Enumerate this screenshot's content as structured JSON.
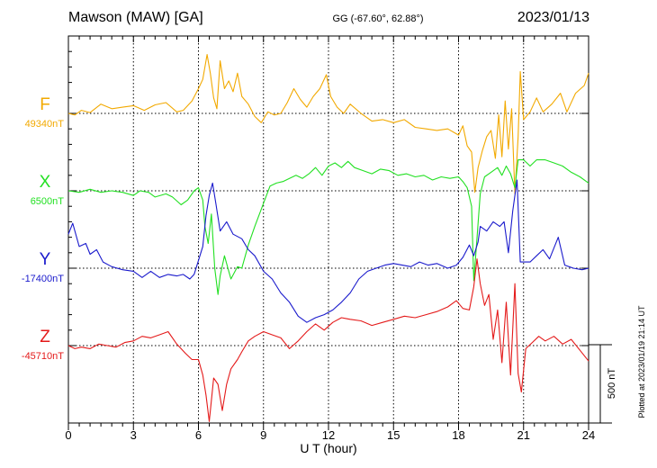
{
  "header": {
    "station": "Mawson (MAW)  [GA]",
    "coords": "GG (-67.60°,  62.88°)",
    "date": "2023/01/13"
  },
  "xaxis": {
    "label": "U T (hour)",
    "ticks": [
      "0",
      "3",
      "6",
      "9",
      "12",
      "15",
      "18",
      "21",
      "24"
    ]
  },
  "scale_bar": {
    "label": "500 nT",
    "value_nT": 500
  },
  "plotted_note": "Plotted at 2023/01/19 21:14 UT",
  "chart_data": {
    "type": "line",
    "x_range": [
      0,
      24
    ],
    "x_ticks": [
      0,
      3,
      6,
      9,
      12,
      15,
      18,
      21,
      24
    ],
    "nT_per_division": 500,
    "series": [
      {
        "name": "F",
        "baseline": "49340nT",
        "color": "#f2a900",
        "points": [
          [
            0,
            49340
          ],
          [
            0.3,
            49330
          ],
          [
            0.6,
            49360
          ],
          [
            1.0,
            49345
          ],
          [
            1.5,
            49400
          ],
          [
            2.0,
            49370
          ],
          [
            2.5,
            49380
          ],
          [
            3.0,
            49390
          ],
          [
            3.5,
            49360
          ],
          [
            4.0,
            49395
          ],
          [
            4.5,
            49410
          ],
          [
            5.0,
            49350
          ],
          [
            5.3,
            49360
          ],
          [
            5.7,
            49420
          ],
          [
            6.0,
            49500
          ],
          [
            6.2,
            49560
          ],
          [
            6.4,
            49720
          ],
          [
            6.55,
            49600
          ],
          [
            6.7,
            49440
          ],
          [
            6.85,
            49370
          ],
          [
            7.0,
            49680
          ],
          [
            7.2,
            49500
          ],
          [
            7.4,
            49550
          ],
          [
            7.6,
            49480
          ],
          [
            7.8,
            49600
          ],
          [
            8.0,
            49450
          ],
          [
            8.3,
            49400
          ],
          [
            8.6,
            49320
          ],
          [
            8.9,
            49280
          ],
          [
            9.2,
            49350
          ],
          [
            9.5,
            49330
          ],
          [
            9.8,
            49340
          ],
          [
            10.1,
            49410
          ],
          [
            10.4,
            49500
          ],
          [
            10.7,
            49430
          ],
          [
            11.0,
            49380
          ],
          [
            11.3,
            49450
          ],
          [
            11.6,
            49500
          ],
          [
            11.9,
            49590
          ],
          [
            12.1,
            49450
          ],
          [
            12.4,
            49380
          ],
          [
            12.7,
            49340
          ],
          [
            13.0,
            49400
          ],
          [
            13.5,
            49340
          ],
          [
            14.0,
            49290
          ],
          [
            14.5,
            49300
          ],
          [
            15.0,
            49280
          ],
          [
            15.5,
            49300
          ],
          [
            16.0,
            49250
          ],
          [
            16.5,
            49240
          ],
          [
            17.0,
            49230
          ],
          [
            17.5,
            49240
          ],
          [
            18.0,
            49200
          ],
          [
            18.2,
            49260
          ],
          [
            18.4,
            49130
          ],
          [
            18.6,
            49090
          ],
          [
            18.75,
            48830
          ],
          [
            18.9,
            48990
          ],
          [
            19.1,
            49100
          ],
          [
            19.3,
            49190
          ],
          [
            19.5,
            49230
          ],
          [
            19.7,
            49050
          ],
          [
            19.85,
            49330
          ],
          [
            20.0,
            49060
          ],
          [
            20.15,
            49420
          ],
          [
            20.3,
            49110
          ],
          [
            20.45,
            49370
          ],
          [
            20.6,
            48820
          ],
          [
            20.75,
            49190
          ],
          [
            20.85,
            49610
          ],
          [
            21.0,
            49300
          ],
          [
            21.3,
            49350
          ],
          [
            21.6,
            49440
          ],
          [
            21.9,
            49350
          ],
          [
            22.3,
            49400
          ],
          [
            22.7,
            49470
          ],
          [
            23.0,
            49350
          ],
          [
            23.4,
            49470
          ],
          [
            23.8,
            49520
          ],
          [
            24.0,
            49600
          ]
        ]
      },
      {
        "name": "X",
        "baseline": "6500nT",
        "color": "#22e022",
        "points": [
          [
            0,
            6500
          ],
          [
            0.5,
            6490
          ],
          [
            1.0,
            6510
          ],
          [
            1.5,
            6490
          ],
          [
            2.0,
            6500
          ],
          [
            2.5,
            6490
          ],
          [
            3.0,
            6470
          ],
          [
            3.3,
            6500
          ],
          [
            3.7,
            6490
          ],
          [
            4.0,
            6460
          ],
          [
            4.5,
            6480
          ],
          [
            4.8,
            6460
          ],
          [
            5.2,
            6410
          ],
          [
            5.5,
            6440
          ],
          [
            5.8,
            6500
          ],
          [
            6.0,
            6520
          ],
          [
            6.2,
            6440
          ],
          [
            6.3,
            6270
          ],
          [
            6.45,
            6160
          ],
          [
            6.6,
            6350
          ],
          [
            6.75,
            6000
          ],
          [
            6.9,
            5830
          ],
          [
            7.0,
            5950
          ],
          [
            7.2,
            6080
          ],
          [
            7.5,
            5930
          ],
          [
            7.8,
            6010
          ],
          [
            8.0,
            6000
          ],
          [
            8.3,
            6150
          ],
          [
            8.6,
            6270
          ],
          [
            9.0,
            6420
          ],
          [
            9.3,
            6530
          ],
          [
            9.6,
            6550
          ],
          [
            9.9,
            6560
          ],
          [
            10.2,
            6580
          ],
          [
            10.5,
            6600
          ],
          [
            10.8,
            6580
          ],
          [
            11.1,
            6610
          ],
          [
            11.4,
            6650
          ],
          [
            11.7,
            6600
          ],
          [
            12.0,
            6660
          ],
          [
            12.3,
            6680
          ],
          [
            12.6,
            6650
          ],
          [
            12.9,
            6690
          ],
          [
            13.2,
            6650
          ],
          [
            13.6,
            6630
          ],
          [
            14.0,
            6610
          ],
          [
            14.4,
            6640
          ],
          [
            14.8,
            6630
          ],
          [
            15.2,
            6600
          ],
          [
            15.6,
            6610
          ],
          [
            16.0,
            6590
          ],
          [
            16.4,
            6600
          ],
          [
            16.8,
            6570
          ],
          [
            17.2,
            6590
          ],
          [
            17.6,
            6580
          ],
          [
            18.0,
            6590
          ],
          [
            18.2,
            6560
          ],
          [
            18.4,
            6520
          ],
          [
            18.6,
            6400
          ],
          [
            18.7,
            5920
          ],
          [
            18.8,
            6100
          ],
          [
            19.0,
            6480
          ],
          [
            19.2,
            6590
          ],
          [
            19.5,
            6620
          ],
          [
            19.8,
            6650
          ],
          [
            20.0,
            6600
          ],
          [
            20.2,
            6660
          ],
          [
            20.4,
            6610
          ],
          [
            20.6,
            6520
          ],
          [
            20.75,
            6700
          ],
          [
            21.0,
            6700
          ],
          [
            21.3,
            6660
          ],
          [
            21.6,
            6700
          ],
          [
            22.0,
            6700
          ],
          [
            22.4,
            6680
          ],
          [
            22.8,
            6660
          ],
          [
            23.2,
            6620
          ],
          [
            23.6,
            6590
          ],
          [
            24.0,
            6550
          ]
        ]
      },
      {
        "name": "Y",
        "baseline": "-17400nT",
        "color": "#1a1acc",
        "points": [
          [
            0,
            -17180
          ],
          [
            0.2,
            -17110
          ],
          [
            0.5,
            -17260
          ],
          [
            0.8,
            -17240
          ],
          [
            1.0,
            -17310
          ],
          [
            1.3,
            -17280
          ],
          [
            1.6,
            -17360
          ],
          [
            2.0,
            -17390
          ],
          [
            2.5,
            -17410
          ],
          [
            3.0,
            -17420
          ],
          [
            3.4,
            -17460
          ],
          [
            3.8,
            -17420
          ],
          [
            4.2,
            -17460
          ],
          [
            4.6,
            -17440
          ],
          [
            5.0,
            -17450
          ],
          [
            5.3,
            -17440
          ],
          [
            5.6,
            -17470
          ],
          [
            5.8,
            -17440
          ],
          [
            6.0,
            -17350
          ],
          [
            6.2,
            -17260
          ],
          [
            6.35,
            -17060
          ],
          [
            6.5,
            -16930
          ],
          [
            6.65,
            -16850
          ],
          [
            6.8,
            -16980
          ],
          [
            7.0,
            -17160
          ],
          [
            7.3,
            -17100
          ],
          [
            7.6,
            -17180
          ],
          [
            8.0,
            -17210
          ],
          [
            8.3,
            -17280
          ],
          [
            8.6,
            -17320
          ],
          [
            9.0,
            -17420
          ],
          [
            9.4,
            -17470
          ],
          [
            9.8,
            -17560
          ],
          [
            10.2,
            -17620
          ],
          [
            10.6,
            -17710
          ],
          [
            11.0,
            -17750
          ],
          [
            11.4,
            -17720
          ],
          [
            11.8,
            -17700
          ],
          [
            12.2,
            -17670
          ],
          [
            12.6,
            -17620
          ],
          [
            13.0,
            -17560
          ],
          [
            13.4,
            -17470
          ],
          [
            13.8,
            -17420
          ],
          [
            14.2,
            -17400
          ],
          [
            14.6,
            -17380
          ],
          [
            15.0,
            -17370
          ],
          [
            15.4,
            -17380
          ],
          [
            15.8,
            -17390
          ],
          [
            16.2,
            -17360
          ],
          [
            16.6,
            -17380
          ],
          [
            17.0,
            -17370
          ],
          [
            17.5,
            -17400
          ],
          [
            17.9,
            -17380
          ],
          [
            18.2,
            -17330
          ],
          [
            18.5,
            -17250
          ],
          [
            18.7,
            -17320
          ],
          [
            18.9,
            -17230
          ],
          [
            19.0,
            -17130
          ],
          [
            19.3,
            -17160
          ],
          [
            19.6,
            -17100
          ],
          [
            19.9,
            -17130
          ],
          [
            20.1,
            -17100
          ],
          [
            20.3,
            -17300
          ],
          [
            20.5,
            -17030
          ],
          [
            20.7,
            -16830
          ],
          [
            20.85,
            -17360
          ],
          [
            21.0,
            -17360
          ],
          [
            21.3,
            -17360
          ],
          [
            21.6,
            -17320
          ],
          [
            21.9,
            -17280
          ],
          [
            22.2,
            -17340
          ],
          [
            22.6,
            -17200
          ],
          [
            22.9,
            -17380
          ],
          [
            23.3,
            -17400
          ],
          [
            23.7,
            -17410
          ],
          [
            24.0,
            -17400
          ]
        ]
      },
      {
        "name": "Z",
        "baseline": "-45710nT",
        "color": "#e41a1a",
        "points": [
          [
            0,
            -45710
          ],
          [
            0.3,
            -45730
          ],
          [
            0.6,
            -45720
          ],
          [
            1.0,
            -45730
          ],
          [
            1.4,
            -45700
          ],
          [
            1.8,
            -45710
          ],
          [
            2.2,
            -45720
          ],
          [
            2.6,
            -45690
          ],
          [
            3.0,
            -45680
          ],
          [
            3.4,
            -45650
          ],
          [
            3.8,
            -45660
          ],
          [
            4.2,
            -45640
          ],
          [
            4.6,
            -45620
          ],
          [
            5.0,
            -45700
          ],
          [
            5.4,
            -45760
          ],
          [
            5.7,
            -45800
          ],
          [
            6.0,
            -45800
          ],
          [
            6.2,
            -45900
          ],
          [
            6.35,
            -46030
          ],
          [
            6.5,
            -46200
          ],
          [
            6.7,
            -45920
          ],
          [
            6.9,
            -45960
          ],
          [
            7.1,
            -46130
          ],
          [
            7.3,
            -45960
          ],
          [
            7.5,
            -45860
          ],
          [
            7.8,
            -45800
          ],
          [
            8.0,
            -45750
          ],
          [
            8.3,
            -45680
          ],
          [
            8.6,
            -45650
          ],
          [
            9.0,
            -45620
          ],
          [
            9.4,
            -45640
          ],
          [
            9.8,
            -45660
          ],
          [
            10.2,
            -45730
          ],
          [
            10.6,
            -45680
          ],
          [
            11.0,
            -45620
          ],
          [
            11.4,
            -45570
          ],
          [
            11.8,
            -45610
          ],
          [
            12.2,
            -45560
          ],
          [
            12.6,
            -45530
          ],
          [
            13.0,
            -45540
          ],
          [
            13.5,
            -45550
          ],
          [
            14.0,
            -45580
          ],
          [
            14.5,
            -45560
          ],
          [
            15.0,
            -45540
          ],
          [
            15.5,
            -45520
          ],
          [
            16.0,
            -45530
          ],
          [
            16.5,
            -45510
          ],
          [
            17.0,
            -45490
          ],
          [
            17.5,
            -45460
          ],
          [
            17.9,
            -45420
          ],
          [
            18.2,
            -45470
          ],
          [
            18.5,
            -45480
          ],
          [
            18.7,
            -45330
          ],
          [
            18.85,
            -45150
          ],
          [
            19.0,
            -45310
          ],
          [
            19.2,
            -45450
          ],
          [
            19.4,
            -45380
          ],
          [
            19.6,
            -45670
          ],
          [
            19.8,
            -45480
          ],
          [
            20.0,
            -45820
          ],
          [
            20.2,
            -45430
          ],
          [
            20.4,
            -45900
          ],
          [
            20.6,
            -45310
          ],
          [
            20.75,
            -45890
          ],
          [
            20.9,
            -46010
          ],
          [
            21.1,
            -45730
          ],
          [
            21.4,
            -45690
          ],
          [
            21.7,
            -45650
          ],
          [
            22.0,
            -45680
          ],
          [
            22.4,
            -45650
          ],
          [
            22.8,
            -45700
          ],
          [
            23.2,
            -45670
          ],
          [
            23.6,
            -45740
          ],
          [
            24.0,
            -45810
          ]
        ]
      }
    ]
  }
}
